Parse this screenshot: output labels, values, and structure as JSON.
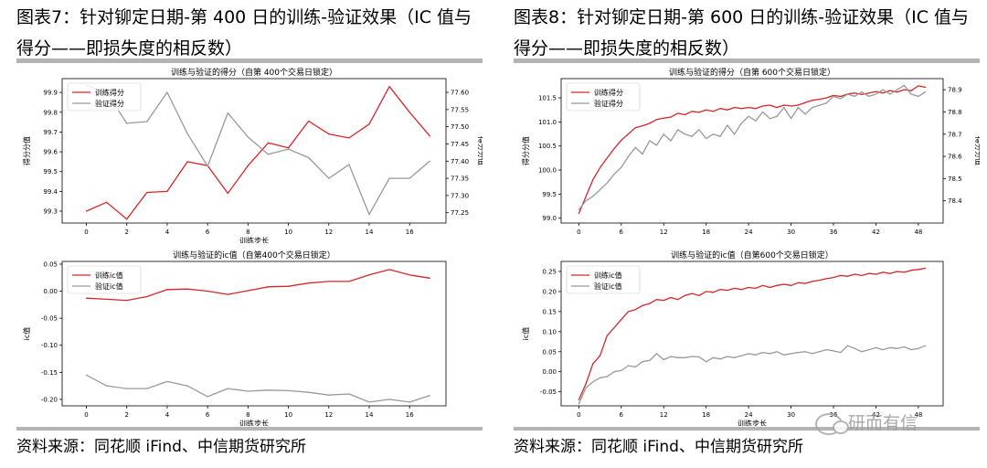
{
  "panels": [
    {
      "title": "图表7：针对铆定日期-第 400 日的训练-验证效果（IC 值与得分——即损失度的相反数）",
      "source": "资料来源：同花顺 iFind、中信期货研究所"
    },
    {
      "title": "图表8：针对铆定日期-第 600 日的训练-验证效果（IC 值与得分——即损失度的相反数）",
      "source": "资料来源：同花顺 iFind、中信期货研究所"
    }
  ],
  "watermark": "研而有信",
  "colors": {
    "train": "#d62728",
    "valid": "#999999"
  },
  "chart_data": [
    {
      "type": "line",
      "title": "训练与验证的得分（自第 400个交易日锁定）",
      "xlabel": "训练步长",
      "ylabel": "得分分值",
      "y2label": "得分分值",
      "x": [
        0,
        1,
        2,
        3,
        4,
        5,
        6,
        7,
        8,
        9,
        10,
        11,
        12,
        13,
        14,
        15,
        16,
        17
      ],
      "xticks": [
        0,
        2,
        4,
        6,
        8,
        10,
        12,
        14,
        16
      ],
      "xlim": [
        -1.2,
        17.8
      ],
      "legend": "upper-left",
      "ylim": [
        99.24,
        99.97
      ],
      "yticks": [
        99.3,
        99.4,
        99.5,
        99.6,
        99.7,
        99.8,
        99.9
      ],
      "ytick_labels": [
        "99.3",
        "99.4",
        "99.5",
        "99.6",
        "99.7",
        "99.8",
        "99.9"
      ],
      "y2lim": [
        77.22,
        77.64
      ],
      "y2ticks": [
        77.25,
        77.3,
        77.35,
        77.4,
        77.45,
        77.5,
        77.55,
        77.6
      ],
      "y2tick_labels": [
        "77.25",
        "77.30",
        "77.35",
        "77.40",
        "77.45",
        "77.50",
        "77.55",
        "77.60"
      ],
      "series": [
        {
          "name": "训练得分",
          "axis": "left",
          "color": "#d62728",
          "values": [
            99.3,
            99.345,
            99.26,
            99.395,
            99.4,
            99.55,
            99.53,
            99.39,
            99.53,
            99.645,
            99.62,
            99.755,
            99.69,
            99.67,
            99.74,
            99.93,
            99.8,
            99.68
          ]
        },
        {
          "name": "验证得分",
          "axis": "right",
          "color": "#999999",
          "values": [
            77.62,
            77.6,
            77.51,
            77.515,
            77.6,
            77.48,
            77.385,
            77.54,
            77.47,
            77.42,
            77.435,
            77.41,
            77.35,
            77.39,
            77.245,
            77.35,
            77.35,
            77.4
          ]
        }
      ]
    },
    {
      "type": "line",
      "title": "训练与验证的ic值（自第400个交易日锁定）",
      "xlabel": "训练步长",
      "ylabel": "ic值",
      "x": [
        0,
        1,
        2,
        3,
        4,
        5,
        6,
        7,
        8,
        9,
        10,
        11,
        12,
        13,
        14,
        15,
        16,
        17
      ],
      "xticks": [
        0,
        2,
        4,
        6,
        8,
        10,
        12,
        14,
        16
      ],
      "xlim": [
        -1.2,
        17.8
      ],
      "legend": "upper-left",
      "ylim": [
        -0.212,
        0.055
      ],
      "yticks": [
        -0.2,
        -0.15,
        -0.1,
        -0.05,
        0.0,
        0.05
      ],
      "ytick_labels": [
        "-0.20",
        "-0.15",
        "-0.10",
        "-0.05",
        "0.00",
        "0.05"
      ],
      "series": [
        {
          "name": "训练ic值",
          "axis": "left",
          "color": "#d62728",
          "values": [
            -0.013,
            -0.015,
            -0.017,
            -0.01,
            0.003,
            0.004,
            0.0,
            -0.006,
            0.001,
            0.008,
            0.009,
            0.015,
            0.018,
            0.018,
            0.03,
            0.04,
            0.03,
            0.024
          ]
        },
        {
          "name": "验证ic值",
          "axis": "left",
          "color": "#999999",
          "values": [
            -0.155,
            -0.175,
            -0.18,
            -0.18,
            -0.167,
            -0.175,
            -0.195,
            -0.18,
            -0.185,
            -0.183,
            -0.184,
            -0.187,
            -0.192,
            -0.19,
            -0.205,
            -0.2,
            -0.205,
            -0.193
          ]
        }
      ]
    },
    {
      "type": "line",
      "title": "训练与验证的得分（自第 600个交易日锁定）",
      "xlabel": "",
      "ylabel": "得分分值",
      "y2label": "得分分值",
      "x": [
        0,
        1,
        2,
        3,
        4,
        5,
        6,
        7,
        8,
        9,
        10,
        11,
        12,
        13,
        14,
        15,
        16,
        17,
        18,
        19,
        20,
        21,
        22,
        23,
        24,
        25,
        26,
        27,
        28,
        29,
        30,
        31,
        32,
        33,
        34,
        35,
        36,
        37,
        38,
        39,
        40,
        41,
        42,
        43,
        44,
        45,
        46,
        47,
        48,
        49
      ],
      "xticks": [
        0,
        6,
        12,
        18,
        24,
        30,
        36,
        42,
        48
      ],
      "xlim": [
        -2.5,
        51.5
      ],
      "legend": "upper-left",
      "ylim": [
        98.9,
        101.9
      ],
      "yticks": [
        99.0,
        99.5,
        100.0,
        100.5,
        101.0,
        101.5
      ],
      "ytick_labels": [
        "99.0",
        "99.5",
        "100.0",
        "100.5",
        "101.0",
        "101.5"
      ],
      "y2lim": [
        78.3,
        78.95
      ],
      "y2ticks": [
        78.4,
        78.5,
        78.6,
        78.7,
        78.8,
        78.9
      ],
      "y2tick_labels": [
        "78.4",
        "78.5",
        "78.6",
        "78.7",
        "78.8",
        "78.9"
      ],
      "series": [
        {
          "name": "训练得分",
          "axis": "left",
          "color": "#d62728",
          "values": [
            99.1,
            99.45,
            99.8,
            100.05,
            100.25,
            100.45,
            100.62,
            100.75,
            100.88,
            100.92,
            100.97,
            101.05,
            101.08,
            101.1,
            101.18,
            101.15,
            101.22,
            101.2,
            101.25,
            101.22,
            101.28,
            101.25,
            101.3,
            101.28,
            101.3,
            101.28,
            101.33,
            101.35,
            101.3,
            101.35,
            101.33,
            101.35,
            101.4,
            101.45,
            101.47,
            101.5,
            101.55,
            101.53,
            101.58,
            101.6,
            101.57,
            101.6,
            101.63,
            101.6,
            101.65,
            101.62,
            101.67,
            101.65,
            101.75,
            101.72
          ]
        },
        {
          "name": "验证得分",
          "axis": "right",
          "color": "#999999",
          "values": [
            78.36,
            78.4,
            78.42,
            78.45,
            78.48,
            78.52,
            78.55,
            78.6,
            78.64,
            78.61,
            78.67,
            78.65,
            78.7,
            78.67,
            78.72,
            78.7,
            78.69,
            78.72,
            78.68,
            78.7,
            78.69,
            78.74,
            78.7,
            78.75,
            78.78,
            78.76,
            78.8,
            78.77,
            78.78,
            78.82,
            78.77,
            78.82,
            78.79,
            78.82,
            78.83,
            78.84,
            78.87,
            78.86,
            78.88,
            78.87,
            78.89,
            78.87,
            78.88,
            78.9,
            78.88,
            78.9,
            78.92,
            78.88,
            78.87,
            78.89
          ]
        }
      ]
    },
    {
      "type": "line",
      "title": "训练与验证的ic值（自第600个交易日锁定）",
      "xlabel": "训练步长",
      "ylabel": "ic值",
      "x": [
        0,
        1,
        2,
        3,
        4,
        5,
        6,
        7,
        8,
        9,
        10,
        11,
        12,
        13,
        14,
        15,
        16,
        17,
        18,
        19,
        20,
        21,
        22,
        23,
        24,
        25,
        26,
        27,
        28,
        29,
        30,
        31,
        32,
        33,
        34,
        35,
        36,
        37,
        38,
        39,
        40,
        41,
        42,
        43,
        44,
        45,
        46,
        47,
        48,
        49
      ],
      "xticks": [
        0,
        6,
        12,
        18,
        24,
        30,
        36,
        42,
        48
      ],
      "xlim": [
        -2.5,
        51.5
      ],
      "legend": "upper-left",
      "ylim": [
        -0.085,
        0.275
      ],
      "yticks": [
        -0.05,
        0.0,
        0.05,
        0.1,
        0.15,
        0.2,
        0.25
      ],
      "ytick_labels": [
        "-0.05",
        "0.00",
        "0.05",
        "0.10",
        "0.15",
        "0.20",
        "0.25"
      ],
      "series": [
        {
          "name": "训练ic值",
          "axis": "left",
          "color": "#d62728",
          "values": [
            -0.07,
            -0.03,
            0.02,
            0.04,
            0.09,
            0.11,
            0.13,
            0.15,
            0.155,
            0.165,
            0.17,
            0.18,
            0.178,
            0.185,
            0.18,
            0.19,
            0.195,
            0.19,
            0.2,
            0.198,
            0.205,
            0.203,
            0.208,
            0.205,
            0.21,
            0.208,
            0.215,
            0.21,
            0.215,
            0.218,
            0.215,
            0.222,
            0.22,
            0.225,
            0.228,
            0.232,
            0.235,
            0.24,
            0.238,
            0.243,
            0.24,
            0.245,
            0.243,
            0.248,
            0.245,
            0.25,
            0.248,
            0.253,
            0.255,
            0.258
          ]
        },
        {
          "name": "验证ic值",
          "axis": "left",
          "color": "#999999",
          "values": [
            -0.08,
            -0.04,
            -0.025,
            -0.015,
            -0.012,
            0.0,
            0.003,
            0.015,
            0.012,
            0.025,
            0.028,
            0.045,
            0.03,
            0.038,
            0.035,
            0.035,
            0.038,
            0.037,
            0.025,
            0.035,
            0.032,
            0.038,
            0.035,
            0.04,
            0.045,
            0.042,
            0.048,
            0.045,
            0.05,
            0.042,
            0.045,
            0.048,
            0.05,
            0.045,
            0.05,
            0.055,
            0.052,
            0.048,
            0.065,
            0.058,
            0.05,
            0.055,
            0.06,
            0.055,
            0.06,
            0.058,
            0.062,
            0.055,
            0.058,
            0.065
          ]
        }
      ]
    }
  ]
}
